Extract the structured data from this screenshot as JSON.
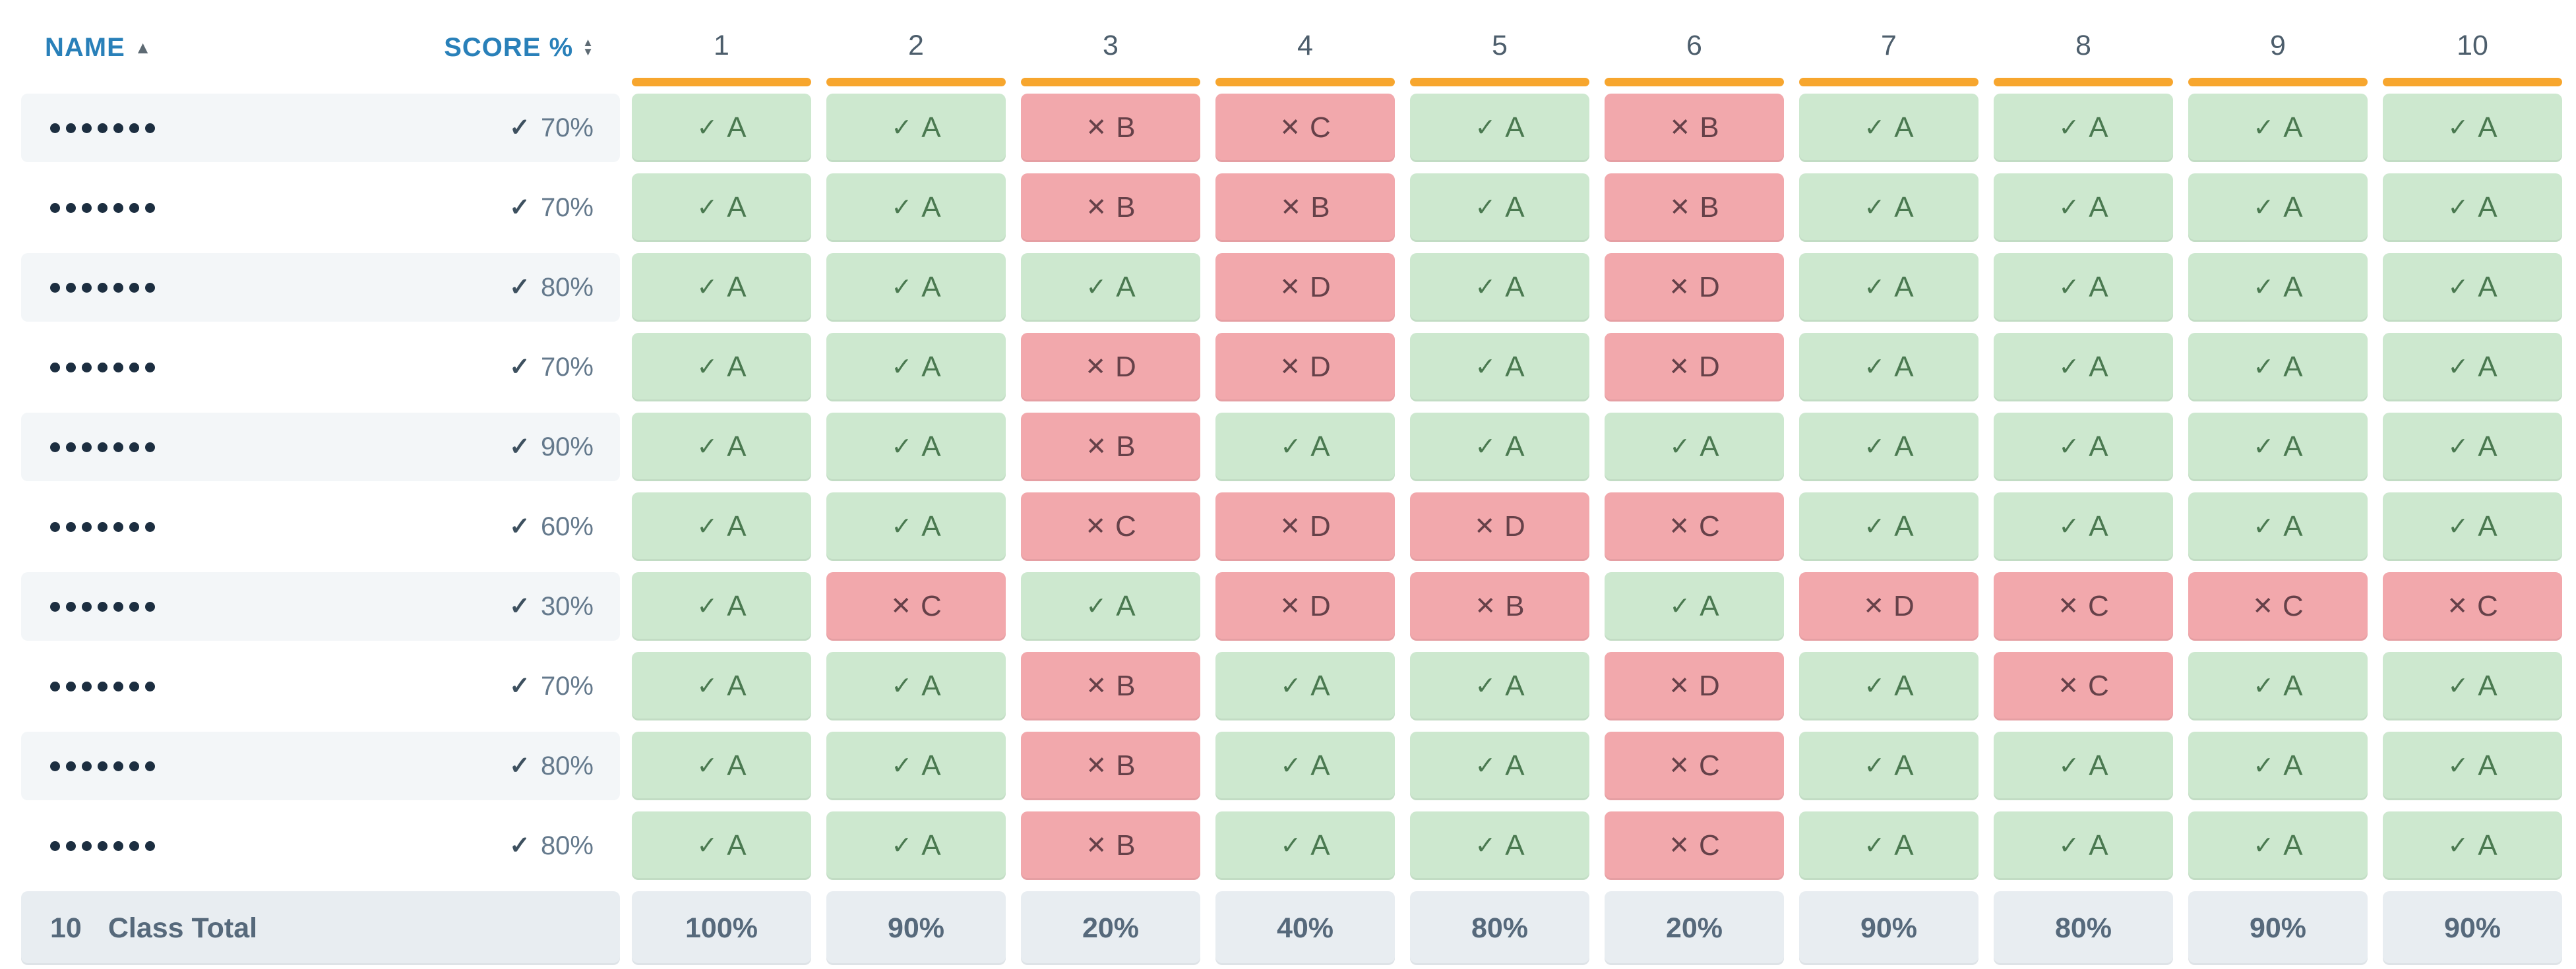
{
  "header": {
    "name_label": "NAME",
    "score_label": "SCORE %",
    "sort_asc_icon": "▲",
    "sort_up_icon": "▲",
    "sort_down_icon": "▼",
    "questions": [
      "1",
      "2",
      "3",
      "4",
      "5",
      "6",
      "7",
      "8",
      "9",
      "10"
    ]
  },
  "icons": {
    "check": "✓",
    "correct": "✓",
    "incorrect": "✕"
  },
  "rows": [
    {
      "name_mask": "•••••••",
      "score": "70%",
      "answers": [
        {
          "ok": true,
          "choice": "A"
        },
        {
          "ok": true,
          "choice": "A"
        },
        {
          "ok": false,
          "choice": "B"
        },
        {
          "ok": false,
          "choice": "C"
        },
        {
          "ok": true,
          "choice": "A"
        },
        {
          "ok": false,
          "choice": "B"
        },
        {
          "ok": true,
          "choice": "A"
        },
        {
          "ok": true,
          "choice": "A"
        },
        {
          "ok": true,
          "choice": "A"
        },
        {
          "ok": true,
          "choice": "A"
        }
      ]
    },
    {
      "name_mask": "•••••••",
      "score": "70%",
      "answers": [
        {
          "ok": true,
          "choice": "A"
        },
        {
          "ok": true,
          "choice": "A"
        },
        {
          "ok": false,
          "choice": "B"
        },
        {
          "ok": false,
          "choice": "B"
        },
        {
          "ok": true,
          "choice": "A"
        },
        {
          "ok": false,
          "choice": "B"
        },
        {
          "ok": true,
          "choice": "A"
        },
        {
          "ok": true,
          "choice": "A"
        },
        {
          "ok": true,
          "choice": "A"
        },
        {
          "ok": true,
          "choice": "A"
        }
      ]
    },
    {
      "name_mask": "•••••••",
      "score": "80%",
      "answers": [
        {
          "ok": true,
          "choice": "A"
        },
        {
          "ok": true,
          "choice": "A"
        },
        {
          "ok": true,
          "choice": "A"
        },
        {
          "ok": false,
          "choice": "D"
        },
        {
          "ok": true,
          "choice": "A"
        },
        {
          "ok": false,
          "choice": "D"
        },
        {
          "ok": true,
          "choice": "A"
        },
        {
          "ok": true,
          "choice": "A"
        },
        {
          "ok": true,
          "choice": "A"
        },
        {
          "ok": true,
          "choice": "A"
        }
      ]
    },
    {
      "name_mask": "•••••••",
      "score": "70%",
      "answers": [
        {
          "ok": true,
          "choice": "A"
        },
        {
          "ok": true,
          "choice": "A"
        },
        {
          "ok": false,
          "choice": "D"
        },
        {
          "ok": false,
          "choice": "D"
        },
        {
          "ok": true,
          "choice": "A"
        },
        {
          "ok": false,
          "choice": "D"
        },
        {
          "ok": true,
          "choice": "A"
        },
        {
          "ok": true,
          "choice": "A"
        },
        {
          "ok": true,
          "choice": "A"
        },
        {
          "ok": true,
          "choice": "A"
        }
      ]
    },
    {
      "name_mask": "•••••••",
      "score": "90%",
      "answers": [
        {
          "ok": true,
          "choice": "A"
        },
        {
          "ok": true,
          "choice": "A"
        },
        {
          "ok": false,
          "choice": "B"
        },
        {
          "ok": true,
          "choice": "A"
        },
        {
          "ok": true,
          "choice": "A"
        },
        {
          "ok": true,
          "choice": "A"
        },
        {
          "ok": true,
          "choice": "A"
        },
        {
          "ok": true,
          "choice": "A"
        },
        {
          "ok": true,
          "choice": "A"
        },
        {
          "ok": true,
          "choice": "A"
        }
      ]
    },
    {
      "name_mask": "•••••••",
      "score": "60%",
      "answers": [
        {
          "ok": true,
          "choice": "A"
        },
        {
          "ok": true,
          "choice": "A"
        },
        {
          "ok": false,
          "choice": "C"
        },
        {
          "ok": false,
          "choice": "D"
        },
        {
          "ok": false,
          "choice": "D"
        },
        {
          "ok": false,
          "choice": "C"
        },
        {
          "ok": true,
          "choice": "A"
        },
        {
          "ok": true,
          "choice": "A"
        },
        {
          "ok": true,
          "choice": "A"
        },
        {
          "ok": true,
          "choice": "A"
        }
      ]
    },
    {
      "name_mask": "•••••••",
      "score": "30%",
      "answers": [
        {
          "ok": true,
          "choice": "A"
        },
        {
          "ok": false,
          "choice": "C"
        },
        {
          "ok": true,
          "choice": "A"
        },
        {
          "ok": false,
          "choice": "D"
        },
        {
          "ok": false,
          "choice": "B"
        },
        {
          "ok": true,
          "choice": "A"
        },
        {
          "ok": false,
          "choice": "D"
        },
        {
          "ok": false,
          "choice": "C"
        },
        {
          "ok": false,
          "choice": "C"
        },
        {
          "ok": false,
          "choice": "C"
        }
      ]
    },
    {
      "name_mask": "•••••••",
      "score": "70%",
      "answers": [
        {
          "ok": true,
          "choice": "A"
        },
        {
          "ok": true,
          "choice": "A"
        },
        {
          "ok": false,
          "choice": "B"
        },
        {
          "ok": true,
          "choice": "A"
        },
        {
          "ok": true,
          "choice": "A"
        },
        {
          "ok": false,
          "choice": "D"
        },
        {
          "ok": true,
          "choice": "A"
        },
        {
          "ok": false,
          "choice": "C"
        },
        {
          "ok": true,
          "choice": "A"
        },
        {
          "ok": true,
          "choice": "A"
        }
      ]
    },
    {
      "name_mask": "•••••••",
      "score": "80%",
      "answers": [
        {
          "ok": true,
          "choice": "A"
        },
        {
          "ok": true,
          "choice": "A"
        },
        {
          "ok": false,
          "choice": "B"
        },
        {
          "ok": true,
          "choice": "A"
        },
        {
          "ok": true,
          "choice": "A"
        },
        {
          "ok": false,
          "choice": "C"
        },
        {
          "ok": true,
          "choice": "A"
        },
        {
          "ok": true,
          "choice": "A"
        },
        {
          "ok": true,
          "choice": "A"
        },
        {
          "ok": true,
          "choice": "A"
        }
      ]
    },
    {
      "name_mask": "•••••••",
      "score": "80%",
      "answers": [
        {
          "ok": true,
          "choice": "A"
        },
        {
          "ok": true,
          "choice": "A"
        },
        {
          "ok": false,
          "choice": "B"
        },
        {
          "ok": true,
          "choice": "A"
        },
        {
          "ok": true,
          "choice": "A"
        },
        {
          "ok": false,
          "choice": "C"
        },
        {
          "ok": true,
          "choice": "A"
        },
        {
          "ok": true,
          "choice": "A"
        },
        {
          "ok": true,
          "choice": "A"
        },
        {
          "ok": true,
          "choice": "A"
        }
      ]
    }
  ],
  "footer": {
    "count": "10",
    "label": "Class Total",
    "totals": [
      "100%",
      "90%",
      "20%",
      "40%",
      "80%",
      "20%",
      "90%",
      "80%",
      "90%",
      "90%"
    ]
  },
  "colors": {
    "header-blue": "#2980b9",
    "sort-gray": "#5d6a73",
    "slate": "#4d5e6c",
    "orange": "#f7a62e",
    "stripe": "#f3f6f8",
    "dot": "#1c2e40",
    "check": "#3d505f",
    "score-fg": "#64798c",
    "green-bg": "#cde8cf",
    "green-fg": "#4a7950",
    "red-bg": "#f2a8ac",
    "red-fg": "#664149",
    "total-bg": "#e8edf1",
    "total-fg": "#56697b"
  }
}
